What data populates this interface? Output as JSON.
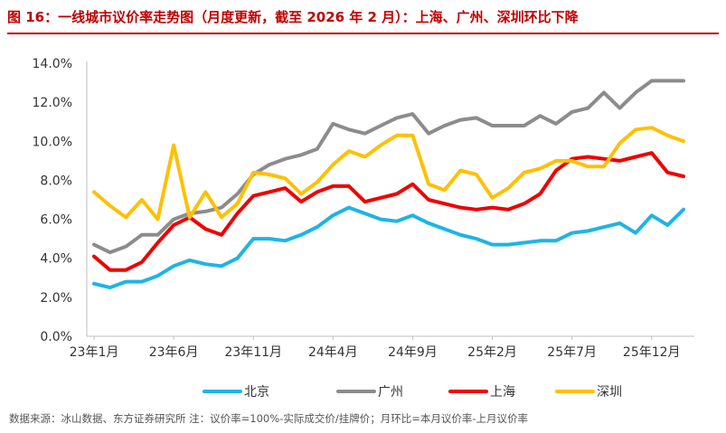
{
  "title": "图 16：一线城市议价率走势图（月度更新，截至 2026 年 2 月）：上海、广州、深圳环比下降",
  "source": "数据来源：冰山数据、东方证券研究所   注：议价率=100%-实际成交价/挂牌价；月环比=本月议价率-上月议价率",
  "colors": {
    "title": "#c00000",
    "beijing": "#1eb4e6",
    "guangzhou": "#8c8c8c",
    "shanghai": "#ee0000",
    "shenzhen": "#ffc000"
  },
  "chart_data": {
    "type": "line",
    "ylim": [
      0,
      14
    ],
    "yticks": [
      "0.0%",
      "2.0%",
      "4.0%",
      "6.0%",
      "8.0%",
      "10.0%",
      "12.0%",
      "14.0%"
    ],
    "xticks": [
      "23年1月",
      "23年6月",
      "23年11月",
      "24年4月",
      "24年9月",
      "25年2月",
      "25年7月",
      "25年12月"
    ],
    "grid": false,
    "legend_position": "bottom",
    "series": [
      {
        "name": "北京",
        "color": "#1eb4e6",
        "values": [
          2.7,
          2.5,
          2.8,
          2.8,
          3.1,
          3.6,
          3.9,
          3.7,
          3.6,
          4.0,
          5.0,
          5.0,
          4.9,
          5.2,
          5.6,
          6.2,
          6.6,
          6.3,
          6.0,
          5.9,
          6.2,
          5.8,
          5.5,
          5.2,
          5.0,
          4.7,
          4.7,
          4.8,
          4.9,
          4.9,
          5.3,
          5.4,
          5.6,
          5.8,
          5.3,
          6.2,
          5.7,
          6.5
        ]
      },
      {
        "name": "广州",
        "color": "#8c8c8c",
        "values": [
          4.7,
          4.3,
          4.6,
          5.2,
          5.2,
          6.0,
          6.3,
          6.4,
          6.6,
          7.3,
          8.3,
          8.8,
          9.1,
          9.3,
          9.6,
          10.9,
          10.6,
          10.4,
          10.8,
          11.2,
          11.4,
          10.4,
          10.8,
          11.1,
          11.2,
          10.8,
          10.8,
          10.8,
          11.3,
          10.9,
          11.5,
          11.7,
          12.5,
          11.7,
          12.5,
          13.1,
          13.1,
          13.1
        ]
      },
      {
        "name": "上海",
        "color": "#ee0000",
        "values": [
          4.1,
          3.4,
          3.4,
          3.8,
          4.8,
          5.7,
          6.1,
          5.5,
          5.2,
          6.3,
          7.2,
          7.4,
          7.6,
          6.9,
          7.4,
          7.7,
          7.7,
          6.9,
          7.1,
          7.3,
          7.8,
          7.0,
          6.8,
          6.6,
          6.5,
          6.6,
          6.5,
          6.8,
          7.3,
          8.5,
          9.1,
          9.2,
          9.1,
          9.0,
          9.2,
          9.4,
          8.4,
          8.2
        ]
      },
      {
        "name": "深圳",
        "color": "#ffc000",
        "values": [
          7.4,
          6.7,
          6.1,
          7.0,
          6.0,
          9.8,
          6.1,
          7.4,
          6.1,
          6.8,
          8.4,
          8.3,
          8.1,
          7.3,
          7.9,
          8.8,
          9.5,
          9.2,
          9.8,
          10.3,
          10.3,
          7.8,
          7.5,
          8.5,
          8.3,
          7.1,
          7.6,
          8.4,
          8.6,
          9.0,
          9.0,
          8.7,
          8.7,
          9.9,
          10.6,
          10.7,
          10.3,
          10.0
        ]
      }
    ]
  }
}
